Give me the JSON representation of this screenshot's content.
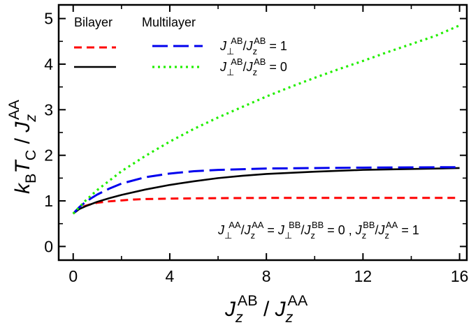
{
  "chart_data": {
    "type": "line",
    "xlabel": {
      "main": "J",
      "sub": "z",
      "sup": "AB",
      "sep": " / ",
      "main2": "J",
      "sub2": "z",
      "sup2": "AA"
    },
    "ylabel": {
      "pre": "k",
      "pre_sub": "B",
      "mid": "T",
      "mid_sub": "C",
      "sep": " / ",
      "main": "J",
      "sub": "z",
      "sup": "AA"
    },
    "xlim": [
      -0.6,
      16.3
    ],
    "ylim": [
      -0.3,
      5.3
    ],
    "x_ticks": [
      0,
      4,
      8,
      12,
      16
    ],
    "y_ticks": [
      0,
      1,
      2,
      3,
      4,
      5
    ],
    "legend": {
      "placement": "top-left",
      "group_headers": [
        "Bilayer",
        "Multilayer"
      ],
      "rows": [
        {
          "label": {
            "a": "J",
            "a_sub": "⊥",
            "a_sup": "AB",
            "slash": "/",
            "b": "J",
            "b_sub": "z",
            "b_sup": "AB",
            "eq": " = 1"
          }
        },
        {
          "label": {
            "a": "J",
            "a_sub": "⊥",
            "a_sup": "AB",
            "slash": "/",
            "b": "J",
            "b_sub": "z",
            "b_sup": "AB",
            "eq": " = 0"
          }
        }
      ]
    },
    "annotation": {
      "t1": "J",
      "t1_sub": "⊥",
      "t1_sup": "AA",
      "s1": "/",
      "t2": "J",
      "t2_sub": "z",
      "t2_sup": "AA",
      "eq1": " = ",
      "t3": "J",
      "t3_sub": "⊥",
      "t3_sup": "BB",
      "s2": "/",
      "t4": "J",
      "t4_sub": "z",
      "t4_sup": "BB",
      "eq2": " = 0 ,  ",
      "t5": "J",
      "t5_sub": "z",
      "t5_sup": "BB",
      "s3": "/",
      "t6": "J",
      "t6_sub": "z",
      "t6_sup": "AA",
      "eq3": " = 1"
    },
    "series": [
      {
        "color": "#ff0000",
        "dash": "11,7",
        "width": 3,
        "x": [
          0,
          0.25,
          0.5,
          0.75,
          1,
          1.5,
          2,
          2.5,
          3,
          4,
          5,
          6,
          8,
          10,
          12,
          14,
          16
        ],
        "y": [
          0.72,
          0.84,
          0.89,
          0.93,
          0.96,
          0.99,
          1.01,
          1.03,
          1.04,
          1.05,
          1.055,
          1.06,
          1.065,
          1.065,
          1.065,
          1.065,
          1.065
        ]
      },
      {
        "color": "#000000",
        "dash": "",
        "width": 2.6,
        "x": [
          0,
          0.25,
          0.5,
          0.75,
          1,
          1.5,
          2,
          3,
          4,
          5,
          6,
          7,
          8,
          10,
          12,
          14,
          16
        ],
        "y": [
          0.72,
          0.82,
          0.88,
          0.93,
          0.98,
          1.06,
          1.13,
          1.25,
          1.35,
          1.43,
          1.5,
          1.55,
          1.59,
          1.64,
          1.68,
          1.7,
          1.72
        ]
      },
      {
        "color": "#0000ee",
        "dash": "22,8",
        "width": 3,
        "x": [
          0,
          0.25,
          0.5,
          0.75,
          1,
          1.5,
          2,
          3,
          4,
          5,
          6,
          8,
          10,
          12,
          14,
          16
        ],
        "y": [
          0.72,
          0.86,
          0.97,
          1.06,
          1.14,
          1.27,
          1.38,
          1.52,
          1.6,
          1.65,
          1.68,
          1.71,
          1.72,
          1.73,
          1.735,
          1.74
        ]
      },
      {
        "color": "#22ee00",
        "dash": "3,5",
        "width": 3.2,
        "x": [
          0,
          0.5,
          1,
          2,
          3,
          4,
          5,
          6,
          7,
          8,
          9,
          10,
          11,
          12,
          13,
          14,
          15,
          16
        ],
        "y": [
          0.72,
          1.0,
          1.24,
          1.65,
          1.99,
          2.3,
          2.58,
          2.83,
          3.06,
          3.29,
          3.5,
          3.7,
          3.89,
          4.07,
          4.26,
          4.44,
          4.62,
          4.85
        ]
      }
    ]
  }
}
